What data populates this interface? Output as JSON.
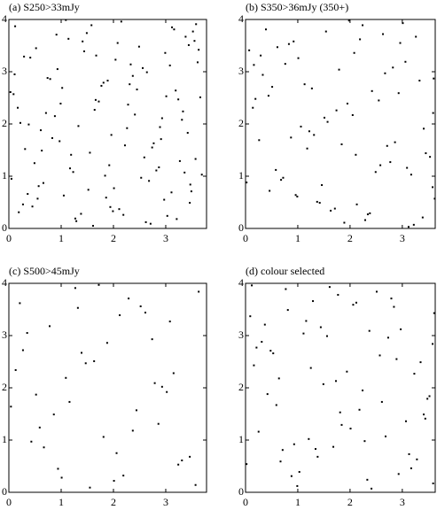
{
  "chart_data": [
    {
      "type": "scatter",
      "title": "(a) S250>33mJy",
      "color": "#000000",
      "xlim": [
        0,
        3.78
      ],
      "ylim": [
        0,
        4
      ],
      "xticks": [
        0,
        1,
        2,
        3
      ],
      "yticks": [
        0,
        1,
        2,
        3,
        4
      ],
      "x": [
        0.12,
        0.45,
        0.88,
        1.23,
        1.67,
        2.01,
        2.45,
        2.89,
        3.21,
        3.55,
        0.31,
        0.74,
        1.05,
        1.49,
        1.92,
        2.28,
        2.71,
        3.08,
        3.42,
        3.66,
        0.05,
        0.52,
        0.97,
        1.38,
        1.81,
        2.15,
        2.59,
        2.97,
        3.33,
        3.61,
        0.22,
        0.66,
        1.14,
        1.55,
        1.99,
        2.37,
        2.82,
        3.16,
        3.49,
        0.09,
        0.41,
        0.83,
        1.29,
        1.72,
        2.08,
        2.53,
        2.93,
        3.27,
        3.58,
        0.27,
        0.61,
        1.02,
        1.44,
        1.86,
        2.22,
        2.64,
        3.03,
        3.38,
        3.69,
        0.17,
        0.57,
        0.93,
        1.33,
        1.77,
        2.11,
        2.49,
        2.87,
        3.24,
        3.52,
        0.36,
        0.79,
        1.19,
        1.61,
        2.04,
        2.41,
        2.77,
        3.12,
        3.46,
        0.03,
        0.49,
        0.91,
        1.27,
        1.64,
        1.96,
        2.33,
        2.68,
        3.01,
        3.36,
        3.63,
        0.19,
        0.63,
        1.09,
        1.52,
        1.89,
        2.26,
        2.62,
        2.99,
        3.31,
        3.57,
        0.11,
        0.55,
        0.99,
        1.41,
        1.84,
        2.19,
        2.56,
        2.91,
        3.19,
        3.47,
        0.29,
        0.71,
        1.17,
        1.58,
        1.94,
        2.31,
        2.74,
        3.11,
        3.44,
        0.38,
        1.66
      ],
      "y": [
        3.87,
        0.42,
        2.15,
        1.08,
        3.31,
        0.77,
        2.66,
        1.94,
        0.18,
        3.59,
        1.52,
        2.88,
        0.63,
        3.74,
        1.21,
        2.37,
        0.09,
        3.12,
        1.83,
        2.51,
        0.95,
        3.45,
        1.67,
        0.28,
        2.79,
        3.96,
        1.36,
        0.55,
        2.24,
        3.18,
        2.02,
        0.87,
        3.63,
        1.45,
        0.33,
        2.92,
        1.11,
        3.81,
        0.71,
        2.57,
        3.27,
        1.73,
        0.14,
        2.43,
        3.55,
        0.97,
        2.11,
        1.29,
        3.91,
        0.46,
        1.88,
        2.69,
        3.39,
        0.59,
        1.59,
        2.99,
        0.24,
        3.67,
        1.03,
        2.31,
        0.81,
        3.05,
        1.96,
        2.73,
        0.37,
        3.48,
        1.17,
        2.47,
        3.77,
        0.66,
        2.86,
        1.41,
        0.05,
        3.23,
        2.18,
        1.63,
        3.85,
        0.49,
        2.61,
        1.25,
        3.71,
        0.19,
        2.27,
        1.79,
        3.14,
        0.91,
        2.53,
        1.07,
        3.42,
        0.31,
        1.49,
        3.99,
        0.74,
        2.83,
        1.92,
        0.12,
        3.36,
        2.08,
        1.33,
        2.95,
        0.57,
        2.39,
        3.58,
        1.01,
        0.26,
        3.07,
        1.71,
        2.64,
        0.84,
        3.29,
        2.21,
        1.15,
        3.89,
        0.41,
        2.76,
        1.55,
        0.69,
        3.51,
        1.99,
        2.46
      ]
    },
    {
      "type": "scatter",
      "title": "(b) S350>36mJy (350+)",
      "color": "#000000",
      "xlim": [
        0,
        3.63
      ],
      "ylim": [
        0,
        4
      ],
      "xticks": [
        0,
        1,
        2,
        3
      ],
      "yticks": [
        0,
        1,
        2,
        3,
        4
      ],
      "x": [
        0.07,
        0.58,
        1.13,
        1.71,
        2.24,
        2.86,
        3.39,
        0.33,
        0.92,
        1.46,
        2.05,
        2.63,
        3.17,
        3.62,
        0.19,
        0.76,
        1.31,
        1.89,
        2.42,
        3.01,
        3.53,
        0.46,
        1.01,
        1.57,
        2.13,
        2.71,
        3.26,
        0.14,
        0.68,
        1.22,
        1.79,
        2.34,
        2.93,
        3.45,
        0.39,
        0.96,
        1.51,
        2.08,
        2.58,
        3.12,
        3.6,
        0.26,
        0.83,
        1.37,
        1.95,
        2.49,
        3.06,
        3.58,
        0.51,
        1.06,
        1.63,
        2.19,
        2.77,
        3.33,
        0.02,
        0.61,
        1.18,
        1.74,
        2.29,
        2.82,
        3.41,
        0.44,
        0.99,
        1.54,
        2.11,
        2.67,
        3.22,
        3.59,
        0.29,
        0.87,
        1.42,
        1.98,
        2.55,
        3.09,
        0.16,
        0.72,
        1.27,
        1.84,
        2.38,
        2.96
      ],
      "y": [
        3.41,
        1.12,
        2.76,
        0.38,
        3.89,
        1.65,
        0.21,
        2.94,
        3.58,
        0.83,
        2.17,
        3.72,
        1.03,
        0.57,
        2.48,
        3.15,
        1.79,
        0.11,
        2.63,
        3.93,
        1.37,
        0.72,
        3.26,
        2.04,
        0.46,
        1.58,
        3.67,
        2.31,
        0.93,
        1.86,
        3.04,
        0.27,
        2.59,
        1.44,
        3.81,
        0.64,
        2.12,
        3.36,
        1.21,
        0.03,
        2.87,
        1.69,
        3.53,
        0.51,
        2.39,
        1.08,
        3.19,
        0.79,
        2.71,
        1.95,
        0.34,
        3.62,
        1.27,
        2.83,
        0.88,
        3.47,
        1.53,
        2.26,
        0.16,
        3.08,
        1.91,
        2.54,
        0.61,
        3.77,
        1.41,
        2.97,
        0.07,
        2.21,
        3.31,
        1.74,
        0.49,
        3.98,
        2.45,
        1.16,
        3.13,
        0.97,
        2.68,
        1.61,
        0.29,
        3.55
      ]
    },
    {
      "type": "scatter",
      "title": "(c) S500>45mJy",
      "color": "#000000",
      "xlim": [
        0,
        3.78
      ],
      "ylim": [
        0,
        4
      ],
      "xticks": [
        0,
        1,
        2,
        3
      ],
      "yticks": [
        0,
        1,
        2,
        3,
        4
      ],
      "x": [
        0.21,
        0.94,
        1.63,
        2.37,
        3.08,
        0.52,
        1.27,
        2.01,
        2.74,
        3.46,
        0.13,
        0.86,
        1.55,
        2.29,
        3.02,
        0.67,
        1.39,
        2.12,
        2.86,
        3.57,
        0.35,
        1.09,
        1.81,
        2.52,
        3.24,
        0.04,
        0.78,
        1.47,
        2.19,
        2.93,
        3.63,
        0.43,
        1.16,
        1.88,
        2.61,
        3.31,
        0.27,
        1.01,
        1.72,
        2.44,
        3.15,
        0.59,
        1.32,
        2.06,
        2.79
      ],
      "y": [
        3.62,
        0.45,
        2.51,
        1.18,
        3.27,
        1.87,
        3.91,
        0.22,
        2.93,
        0.68,
        2.34,
        1.49,
        0.09,
        3.71,
        1.92,
        0.86,
        2.67,
        3.39,
        1.31,
        0.14,
        3.05,
        2.19,
        1.06,
        3.56,
        0.53,
        1.64,
        3.18,
        2.47,
        0.32,
        2.02,
        3.84,
        0.97,
        1.73,
        2.86,
        3.44,
        0.61,
        2.72,
        0.28,
        3.97,
        1.57,
        2.28,
        1.24,
        3.53,
        0.75,
        2.09
      ]
    },
    {
      "type": "scatter",
      "title": "(d) colour selected",
      "color": "#000000",
      "xlim": [
        0,
        3.63
      ],
      "ylim": [
        0,
        4
      ],
      "xticks": [
        0,
        1,
        2,
        3
      ],
      "yticks": [
        0,
        1,
        2,
        3,
        4
      ],
      "x": [
        0.16,
        0.71,
        1.29,
        1.84,
        2.41,
        2.97,
        3.52,
        0.48,
        1.03,
        1.61,
        2.18,
        2.73,
        3.28,
        0.09,
        0.64,
        1.21,
        1.77,
        2.33,
        2.89,
        3.44,
        0.37,
        0.93,
        1.49,
        2.06,
        2.61,
        3.17,
        3.58,
        0.25,
        0.81,
        1.38,
        1.94,
        2.51,
        3.07,
        3.59,
        0.53,
        1.11,
        1.68,
        2.24,
        2.79,
        3.35,
        0.02,
        0.59,
        1.16,
        1.73,
        2.28,
        2.84,
        3.41,
        0.31,
        0.88,
        1.44,
        2.01,
        2.57,
        3.13,
        3.61,
        0.42,
        0.99,
        1.56,
        2.12,
        2.68,
        3.23,
        0.12,
        0.67,
        1.25,
        1.81,
        2.37,
        2.93,
        3.48,
        0.21,
        0.77,
        1.34
      ],
      "y": [
        2.43,
        0.81,
        3.66,
        1.29,
        0.07,
        3.12,
        1.84,
        2.71,
        0.39,
        3.93,
        1.58,
        2.96,
        0.63,
        3.37,
        2.18,
        1.02,
        3.78,
        0.24,
        2.55,
        1.41,
        3.21,
        0.92,
        2.07,
        3.59,
        1.73,
        0.46,
        2.84,
        1.16,
        3.49,
        0.68,
        2.31,
        3.84,
        1.36,
        0.17,
        2.66,
        3.04,
        0.87,
        1.95,
        3.71,
        2.49,
        0.54,
        1.67,
        3.28,
        2.13,
        0.98,
        3.55,
        1.49,
        2.88,
        0.31,
        3.16,
        1.22,
        2.62,
        0.73,
        3.43,
        1.88,
        0.12,
        2.99,
        3.63,
        1.07,
        2.27,
        3.96,
        0.59,
        2.38,
        1.53,
        3.09,
        0.35,
        1.79,
        2.77,
        3.89,
        0.83
      ]
    }
  ]
}
